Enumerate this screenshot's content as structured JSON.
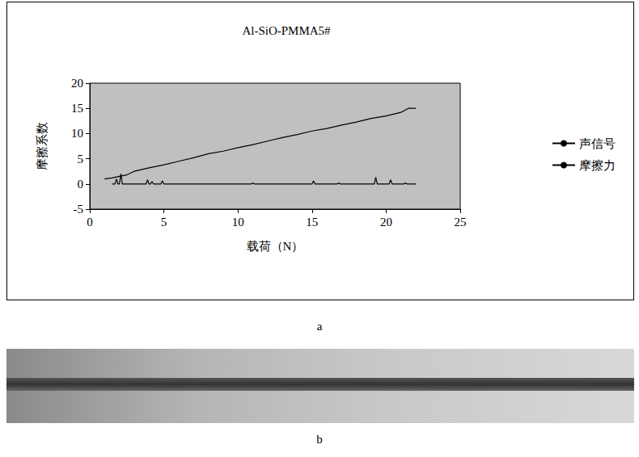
{
  "chart_data": {
    "type": "line",
    "title": "Al-SiO-PMMA5#",
    "x_label": "载荷（N）",
    "y_label": "摩擦系数",
    "xlim": [
      0,
      25
    ],
    "xticks": [
      0,
      5,
      10,
      15,
      20,
      25
    ],
    "ylim": [
      -5,
      20
    ],
    "yticks": [
      -5,
      0,
      5,
      10,
      15,
      20
    ],
    "grid": false,
    "legend": "right",
    "series": [
      {
        "name": "声信号",
        "color": "#000000",
        "marker": "none",
        "line_style": "solid",
        "x": [
          1.5,
          1.7,
          1.8,
          1.9,
          2.0,
          2.1,
          2.2,
          3.8,
          3.9,
          4.0,
          4.1,
          4.2,
          4.3,
          4.8,
          4.9,
          5.0,
          10.9,
          11.0,
          11.1,
          15.0,
          15.1,
          15.2,
          16.7,
          16.8,
          16.9,
          19.2,
          19.3,
          19.4,
          20.2,
          20.3,
          20.4,
          21.2,
          21.3,
          21.4,
          22.0
        ],
        "values": [
          0,
          0,
          1,
          0,
          0,
          2,
          0,
          0,
          0.8,
          0,
          0,
          0.5,
          0,
          0,
          0.6,
          0,
          0,
          0.2,
          0,
          0,
          0.6,
          0,
          0,
          0.2,
          0,
          0,
          1.3,
          0,
          0,
          0.8,
          0,
          0,
          0.2,
          0,
          0
        ]
      },
      {
        "name": "摩擦力",
        "color": "#000000",
        "marker": "none",
        "line_style": "solid",
        "x": [
          1.0,
          1.5,
          2.0,
          2.5,
          3.0,
          4.0,
          5.0,
          6.0,
          7.0,
          8.0,
          9.0,
          10.0,
          11.0,
          12.0,
          13.0,
          14.0,
          15.0,
          16.0,
          17.0,
          18.0,
          19.0,
          20.0,
          21.0,
          21.5,
          22.0
        ],
        "values": [
          1.0,
          1.2,
          1.5,
          1.8,
          2.5,
          3.2,
          3.8,
          4.5,
          5.2,
          6.0,
          6.5,
          7.2,
          7.8,
          8.5,
          9.2,
          9.8,
          10.5,
          11.0,
          11.7,
          12.3,
          13.0,
          13.5,
          14.2,
          15.0,
          15.0
        ]
      }
    ]
  },
  "panel_labels": [
    "a",
    "b"
  ]
}
